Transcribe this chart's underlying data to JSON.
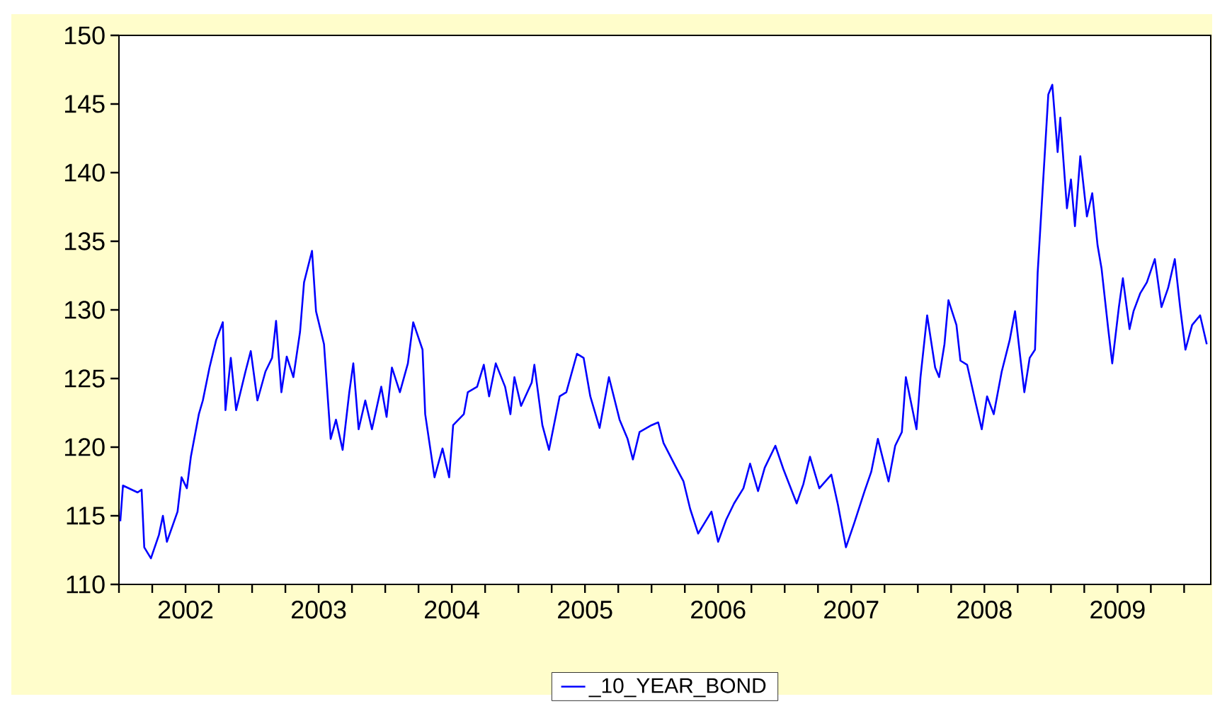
{
  "chart_data": {
    "type": "line",
    "x": [
      2002.01,
      2002.03,
      2002.14,
      2002.17,
      2002.19,
      2002.24,
      2002.3,
      2002.33,
      2002.36,
      2002.44,
      2002.47,
      2002.51,
      2002.54,
      2002.6,
      2002.63,
      2002.68,
      2002.73,
      2002.78,
      2002.8,
      2002.84,
      2002.88,
      2002.95,
      2002.99,
      2003.04,
      2003.1,
      2003.15,
      2003.18,
      2003.22,
      2003.26,
      2003.31,
      2003.36,
      2003.39,
      2003.45,
      2003.48,
      2003.54,
      2003.59,
      2003.63,
      2003.68,
      2003.73,
      2003.76,
      2003.8,
      2003.85,
      2003.9,
      2003.97,
      2004.01,
      2004.05,
      2004.11,
      2004.17,
      2004.21,
      2004.28,
      2004.3,
      2004.37,
      2004.43,
      2004.48,
      2004.51,
      2004.59,
      2004.62,
      2004.69,
      2004.74,
      2004.78,
      2004.83,
      2004.9,
      2004.94,
      2004.97,
      2005.02,
      2005.1,
      2005.12,
      2005.18,
      2005.23,
      2005.31,
      2005.36,
      2005.44,
      2005.49,
      2005.54,
      2005.61,
      2005.68,
      2005.76,
      2005.82,
      2005.86,
      2005.91,
      2006.0,
      2006.05,
      2006.09,
      2006.18,
      2006.24,
      2006.29,
      2006.35,
      2006.45,
      2006.5,
      2006.56,
      2006.62,
      2006.69,
      2006.74,
      2006.8,
      2006.85,
      2006.93,
      2006.99,
      2007.09,
      2007.14,
      2007.19,
      2007.26,
      2007.35,
      2007.4,
      2007.46,
      2007.52,
      2007.6,
      2007.65,
      2007.7,
      2007.78,
      2007.83,
      2007.88,
      2007.91,
      2007.99,
      2008.02,
      2008.07,
      2008.13,
      2008.16,
      2008.2,
      2008.23,
      2008.29,
      2008.32,
      2008.37,
      2008.43,
      2008.48,
      2008.52,
      2008.57,
      2008.63,
      2008.69,
      2008.73,
      2008.77,
      2008.8,
      2008.84,
      2008.88,
      2008.9,
      2008.94,
      2008.98,
      2009.01,
      2009.05,
      2009.07,
      2009.12,
      2009.15,
      2009.18,
      2009.22,
      2009.27,
      2009.31,
      2009.35,
      2009.38,
      2009.43,
      2009.46,
      2009.51,
      2009.54,
      2009.59,
      2009.62,
      2009.67,
      2009.72,
      2009.78,
      2009.83,
      2009.88,
      2009.93,
      2009.97,
      2010.01,
      2010.06,
      2010.12,
      2010.17
    ],
    "series": [
      {
        "name": "_10_YEAR_BOND",
        "color": "#0000ff",
        "values": [
          114.6,
          117.2,
          116.7,
          116.9,
          112.7,
          111.9,
          113.6,
          115.0,
          113.1,
          115.3,
          117.8,
          117.0,
          119.3,
          122.4,
          123.4,
          125.8,
          127.8,
          129.1,
          122.7,
          126.5,
          122.7,
          125.5,
          127.0,
          123.4,
          125.5,
          126.5,
          129.2,
          124.0,
          126.6,
          125.1,
          128.4,
          132.0,
          134.3,
          129.9,
          127.5,
          120.6,
          122.0,
          119.8,
          124.0,
          126.1,
          121.3,
          123.4,
          121.3,
          124.4,
          122.2,
          125.8,
          124.0,
          126.1,
          129.1,
          127.1,
          122.4,
          117.8,
          119.9,
          117.8,
          121.6,
          122.4,
          124.0,
          124.4,
          126.0,
          123.7,
          126.1,
          124.4,
          122.4,
          125.1,
          123.0,
          124.7,
          126.0,
          121.6,
          119.8,
          123.7,
          124.0,
          126.8,
          126.5,
          123.7,
          121.4,
          125.1,
          122.0,
          120.6,
          119.1,
          121.1,
          121.6,
          121.8,
          120.3,
          118.6,
          117.5,
          115.5,
          113.7,
          115.3,
          113.1,
          114.7,
          115.9,
          117.0,
          118.8,
          116.8,
          118.5,
          120.1,
          118.4,
          115.9,
          117.3,
          119.3,
          117.0,
          118.0,
          115.8,
          112.7,
          114.4,
          116.8,
          118.2,
          120.6,
          117.5,
          120.1,
          121.1,
          125.1,
          121.3,
          125.1,
          129.6,
          125.8,
          125.1,
          127.5,
          130.7,
          128.9,
          126.3,
          126.0,
          123.4,
          121.3,
          123.7,
          122.4,
          125.5,
          127.8,
          129.9,
          126.5,
          124.0,
          126.5,
          127.1,
          132.7,
          139.2,
          145.7,
          146.4,
          141.5,
          144.0,
          137.4,
          139.5,
          136.1,
          141.2,
          136.8,
          138.5,
          134.7,
          133.0,
          128.6,
          126.1,
          130.2,
          132.3,
          128.6,
          129.9,
          131.2,
          132.0,
          133.7,
          130.2,
          131.6,
          133.7,
          130.2,
          127.1,
          128.9,
          129.6,
          127.5
        ]
      }
    ],
    "xlim": [
      2002,
      2010.2
    ],
    "xticks": [
      {
        "value": 2002,
        "label": null
      },
      {
        "value": 2002.25,
        "label": null
      },
      {
        "value": 2002.5,
        "label": "2002"
      },
      {
        "value": 2002.75,
        "label": null
      },
      {
        "value": 2003,
        "label": null
      },
      {
        "value": 2003.25,
        "label": null
      },
      {
        "value": 2003.5,
        "label": "2003"
      },
      {
        "value": 2003.75,
        "label": null
      },
      {
        "value": 2004,
        "label": null
      },
      {
        "value": 2004.25,
        "label": null
      },
      {
        "value": 2004.5,
        "label": "2004"
      },
      {
        "value": 2004.75,
        "label": null
      },
      {
        "value": 2005,
        "label": null
      },
      {
        "value": 2005.25,
        "label": null
      },
      {
        "value": 2005.5,
        "label": "2005"
      },
      {
        "value": 2005.75,
        "label": null
      },
      {
        "value": 2006,
        "label": null
      },
      {
        "value": 2006.25,
        "label": null
      },
      {
        "value": 2006.5,
        "label": "2006"
      },
      {
        "value": 2006.75,
        "label": null
      },
      {
        "value": 2007,
        "label": null
      },
      {
        "value": 2007.25,
        "label": null
      },
      {
        "value": 2007.5,
        "label": "2007"
      },
      {
        "value": 2007.75,
        "label": null
      },
      {
        "value": 2008,
        "label": null
      },
      {
        "value": 2008.25,
        "label": null
      },
      {
        "value": 2008.5,
        "label": "2008"
      },
      {
        "value": 2008.75,
        "label": null
      },
      {
        "value": 2009,
        "label": null
      },
      {
        "value": 2009.25,
        "label": null
      },
      {
        "value": 2009.5,
        "label": "2009"
      },
      {
        "value": 2009.75,
        "label": null
      },
      {
        "value": 2010,
        "label": null
      }
    ],
    "ylim": [
      110,
      150
    ],
    "yticks": [
      110,
      115,
      120,
      125,
      130,
      135,
      140,
      145,
      150
    ],
    "legend": "bottom"
  }
}
